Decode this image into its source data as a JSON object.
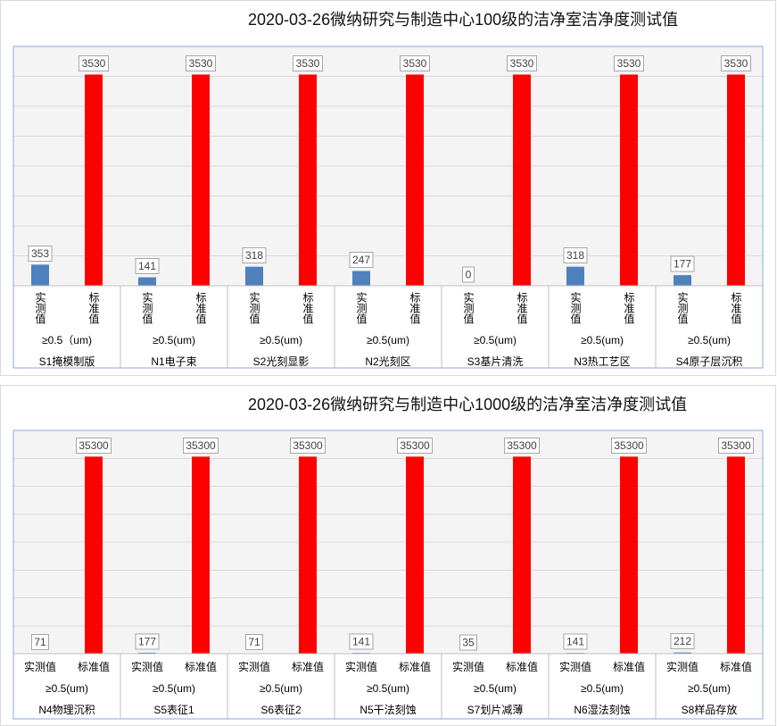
{
  "chart_data": [
    {
      "type": "bar",
      "title": "2020-03-26微纳研究与制造中心100级的洁净室洁净度测试值",
      "categories": [
        "S1掩模制版",
        "N1电子束",
        "S2光刻显影",
        "N2光刻区",
        "S3基片清洗",
        "N3热工艺区",
        "S4原子层沉积"
      ],
      "size_labels": [
        "≥0.5（um)",
        "≥0.5(um)",
        "≥0.5(um)",
        "≥0.5(um)",
        "≥0.5(um)",
        "≥0.5(um)",
        "≥0.5(um)"
      ],
      "series": [
        {
          "name": "实测值",
          "color": "#4f81bd",
          "values": [
            353,
            141,
            318,
            247,
            0,
            318,
            177
          ]
        },
        {
          "name": "标准值",
          "color": "#ff0000",
          "values": [
            3530,
            3530,
            3530,
            3530,
            3530,
            3530,
            3530
          ]
        }
      ],
      "ylim": [
        0,
        4000
      ],
      "y_grid_step": 500,
      "y_axis_visible": false,
      "grid": true,
      "legend": "none",
      "data_labels": true
    },
    {
      "type": "bar",
      "title": "2020-03-26微纳研究与制造中心1000级的洁净室洁净度测试值",
      "categories": [
        "N4物理沉积",
        "S5表征1",
        "S6表征2",
        "N5干法刻蚀",
        "S7划片减薄",
        "N6湿法刻蚀",
        "S8样品存放"
      ],
      "size_labels": [
        "≥0.5(um)",
        "≥0.5(um)",
        "≥0.5(um)",
        "≥0.5(um)",
        "≥0.5(um)",
        "≥0.5(um)",
        "≥0.5(um)"
      ],
      "series": [
        {
          "name": "实测值",
          "color": "#4f81bd",
          "values": [
            71,
            177,
            71,
            141,
            35,
            141,
            212
          ]
        },
        {
          "name": "标准值",
          "color": "#ff0000",
          "values": [
            35300,
            35300,
            35300,
            35300,
            35300,
            35300,
            35300
          ]
        }
      ],
      "ylim": [
        0,
        40000
      ],
      "y_grid_step": 5000,
      "y_axis_visible": false,
      "grid": true,
      "legend": "none",
      "data_labels": true
    }
  ]
}
